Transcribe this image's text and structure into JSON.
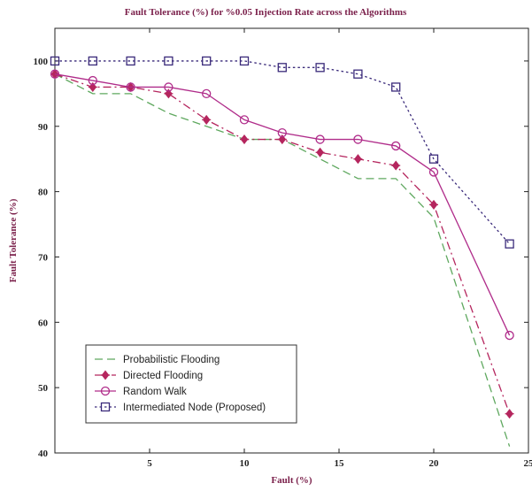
{
  "chart_data": {
    "type": "line",
    "title": "Fault Tolerance (%) for %0.05 Injection Rate across the Algorithms",
    "xlabel": "Fault (%)",
    "ylabel": "Fault Tolerance (%)",
    "xlim": [
      0,
      25
    ],
    "ylim": [
      40,
      105
    ],
    "xticks": [
      5,
      10,
      15,
      20,
      25
    ],
    "yticks": [
      40,
      50,
      60,
      70,
      80,
      90,
      100
    ],
    "grid": false,
    "legend_position": "bottom-left",
    "series": [
      {
        "name": "Probabilistic Flooding",
        "color": "#5fa85f",
        "dash": "dash",
        "marker": "none",
        "x": [
          0,
          2,
          4,
          6,
          8,
          10,
          12,
          14,
          16,
          18,
          20,
          24
        ],
        "y": [
          98,
          95,
          95,
          92,
          90,
          88,
          88,
          85,
          82,
          82,
          76,
          41
        ]
      },
      {
        "name": "Directed Flooding",
        "color": "#b5265e",
        "dash": "dashdot",
        "marker": "diamond",
        "x": [
          0,
          2,
          4,
          6,
          8,
          10,
          12,
          14,
          16,
          18,
          20,
          24
        ],
        "y": [
          98,
          96,
          96,
          95,
          91,
          88,
          88,
          86,
          85,
          84,
          78,
          46
        ]
      },
      {
        "name": "Random Walk",
        "color": "#b02c8a",
        "dash": "solid",
        "marker": "circle",
        "x": [
          0,
          2,
          4,
          6,
          8,
          10,
          12,
          14,
          16,
          18,
          20,
          24
        ],
        "y": [
          98,
          97,
          96,
          96,
          95,
          91,
          89,
          88,
          88,
          87,
          83,
          58
        ]
      },
      {
        "name": "Intermediated Node (Proposed)",
        "color": "#3a2a7a",
        "dash": "dot",
        "marker": "square",
        "x": [
          0,
          2,
          4,
          6,
          8,
          10,
          12,
          14,
          16,
          18,
          20,
          24
        ],
        "y": [
          100,
          100,
          100,
          100,
          100,
          100,
          99,
          99,
          98,
          96,
          85,
          72
        ]
      }
    ]
  }
}
